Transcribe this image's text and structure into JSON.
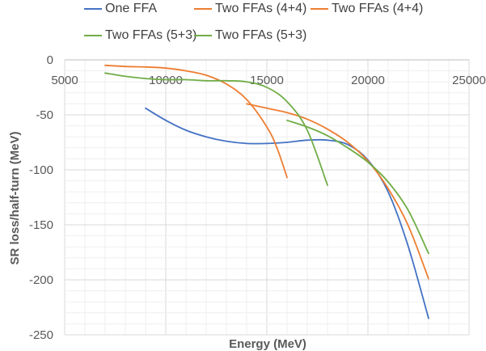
{
  "chart_data": {
    "type": "line",
    "title": "",
    "xlabel": "Energy (MeV)",
    "ylabel": "SR loss/half-turn (MeV)",
    "xlim": [
      5000,
      25000
    ],
    "ylim": [
      -250,
      0
    ],
    "x_ticks": [
      "5000",
      "10000",
      "15000",
      "20000",
      "25000"
    ],
    "y_ticks": [
      "0",
      "-50",
      "-100",
      "-150",
      "-200",
      "-250"
    ],
    "grid": "major and minor",
    "legend": "top",
    "series": [
      {
        "name": "One FFA",
        "color": "#4472C4",
        "x": [
          9000,
          10000,
          11000,
          12000,
          13000,
          14000,
          15000,
          16000,
          17000,
          18000,
          19000,
          20000,
          21000,
          22000,
          23000
        ],
        "y": [
          -44,
          -55,
          -64,
          -70,
          -74,
          -76,
          -76,
          -75,
          -73,
          -73,
          -77,
          -91,
          -120,
          -170,
          -235
        ]
      },
      {
        "name": "Two FFAs (4+4)",
        "color": "#ED7D31",
        "x": [
          7000,
          8000,
          9000,
          10000,
          11000,
          12000,
          13000,
          14000,
          15000,
          15500,
          16000
        ],
        "y": [
          -5,
          -6,
          -6.5,
          -7.5,
          -10,
          -14,
          -22,
          -36,
          -61,
          -80,
          -107
        ]
      },
      {
        "name": "Two FFAs (4+4)",
        "color": "#ED7D31",
        "x": [
          14000,
          15000,
          16000,
          17000,
          18000,
          19000,
          20000,
          21000,
          22000,
          23000
        ],
        "y": [
          -40,
          -44,
          -48,
          -54,
          -63,
          -75,
          -92,
          -117,
          -151,
          -199
        ]
      },
      {
        "name": "Two FFAs (5+3)",
        "color": "#70AD47",
        "x": [
          7000,
          8000,
          9000,
          10000,
          11000,
          12000,
          13000,
          14000,
          15000,
          16000,
          17000,
          18000
        ],
        "y": [
          -12,
          -15,
          -17,
          -18,
          -18,
          -19,
          -19,
          -20,
          -25,
          -38,
          -64,
          -114
        ]
      },
      {
        "name": "Two FFAs (5+3)",
        "color": "#70AD47",
        "x": [
          16000,
          17000,
          18000,
          19000,
          20000,
          21000,
          22000,
          23000
        ],
        "y": [
          -55,
          -61,
          -69,
          -80,
          -93,
          -111,
          -137,
          -176
        ]
      }
    ]
  }
}
